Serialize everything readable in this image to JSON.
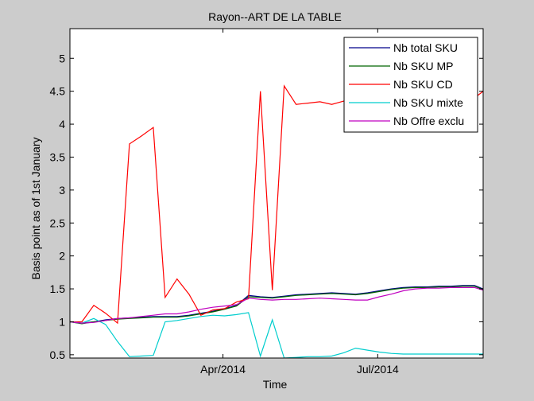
{
  "chart_data": {
    "type": "line",
    "title": "Rayon--ART DE LA TABLE",
    "xlabel": "Time",
    "ylabel": "Basis point as of 1st January",
    "xlim": [
      "2014-01-01",
      "2014-09-01"
    ],
    "ylim": [
      0.45,
      5.45
    ],
    "x_ticks": [
      {
        "date": "2014-04-01",
        "label": "Apr/2014"
      },
      {
        "date": "2014-07-01",
        "label": "Jul/2014"
      }
    ],
    "y_ticks": [
      {
        "value": 0.5,
        "label": "0.5"
      },
      {
        "value": 1,
        "label": "1"
      },
      {
        "value": 1.5,
        "label": "1.5"
      },
      {
        "value": 2,
        "label": "2"
      },
      {
        "value": 2.5,
        "label": "2.5"
      },
      {
        "value": 3,
        "label": "3"
      },
      {
        "value": 3.5,
        "label": "3.5"
      },
      {
        "value": 4,
        "label": "4"
      },
      {
        "value": 4.5,
        "label": "4.5"
      },
      {
        "value": 5,
        "label": "5"
      }
    ],
    "grid": false,
    "legend_position": "top-right",
    "series": [
      {
        "name": "Nb total SKU",
        "color": "#00008b",
        "x": [
          "2014-01-01",
          "2014-01-08",
          "2014-01-15",
          "2014-01-22",
          "2014-01-29",
          "2014-02-05",
          "2014-02-12",
          "2014-02-19",
          "2014-02-26",
          "2014-03-05",
          "2014-03-12",
          "2014-03-19",
          "2014-03-26",
          "2014-04-02",
          "2014-04-09",
          "2014-04-16",
          "2014-04-23",
          "2014-04-30",
          "2014-05-07",
          "2014-05-14",
          "2014-05-21",
          "2014-05-28",
          "2014-06-04",
          "2014-06-11",
          "2014-06-18",
          "2014-06-25",
          "2014-07-02",
          "2014-07-09",
          "2014-07-16",
          "2014-07-23",
          "2014-07-30",
          "2014-08-06",
          "2014-08-13",
          "2014-08-20",
          "2014-08-27",
          "2014-09-01"
        ],
        "y": [
          1.0,
          0.98,
          1.0,
          1.03,
          1.05,
          1.06,
          1.07,
          1.08,
          1.08,
          1.08,
          1.1,
          1.13,
          1.16,
          1.2,
          1.25,
          1.4,
          1.38,
          1.37,
          1.39,
          1.41,
          1.42,
          1.43,
          1.44,
          1.43,
          1.42,
          1.44,
          1.47,
          1.5,
          1.52,
          1.53,
          1.53,
          1.54,
          1.54,
          1.55,
          1.55,
          1.5
        ]
      },
      {
        "name": "Nb SKU MP",
        "color": "#006400",
        "x": [
          "2014-01-01",
          "2014-01-08",
          "2014-01-15",
          "2014-01-22",
          "2014-01-29",
          "2014-02-05",
          "2014-02-12",
          "2014-02-19",
          "2014-02-26",
          "2014-03-05",
          "2014-03-12",
          "2014-03-19",
          "2014-03-26",
          "2014-04-02",
          "2014-04-09",
          "2014-04-16",
          "2014-04-23",
          "2014-04-30",
          "2014-05-07",
          "2014-05-14",
          "2014-05-21",
          "2014-05-28",
          "2014-06-04",
          "2014-06-11",
          "2014-06-18",
          "2014-06-25",
          "2014-07-02",
          "2014-07-09",
          "2014-07-16",
          "2014-07-23",
          "2014-07-30",
          "2014-08-06",
          "2014-08-13",
          "2014-08-20",
          "2014-08-27",
          "2014-09-01"
        ],
        "y": [
          1.0,
          0.97,
          1.0,
          1.02,
          1.04,
          1.05,
          1.06,
          1.07,
          1.07,
          1.07,
          1.09,
          1.12,
          1.15,
          1.19,
          1.24,
          1.38,
          1.37,
          1.36,
          1.38,
          1.4,
          1.41,
          1.42,
          1.43,
          1.42,
          1.41,
          1.43,
          1.46,
          1.49,
          1.51,
          1.52,
          1.52,
          1.53,
          1.53,
          1.54,
          1.54,
          1.49
        ]
      },
      {
        "name": "Nb SKU CD",
        "color": "#ff0000",
        "x": [
          "2014-01-01",
          "2014-01-08",
          "2014-01-15",
          "2014-01-22",
          "2014-01-29",
          "2014-02-05",
          "2014-02-12",
          "2014-02-19",
          "2014-02-26",
          "2014-03-05",
          "2014-03-12",
          "2014-03-19",
          "2014-03-26",
          "2014-04-02",
          "2014-04-09",
          "2014-04-16",
          "2014-04-23",
          "2014-04-30",
          "2014-05-07",
          "2014-05-14",
          "2014-05-21",
          "2014-05-28",
          "2014-06-04",
          "2014-06-11",
          "2014-06-18",
          "2014-06-25",
          "2014-07-02",
          "2014-07-09",
          "2014-07-16",
          "2014-07-23",
          "2014-07-30",
          "2014-08-06",
          "2014-08-13",
          "2014-08-20",
          "2014-08-27",
          "2014-09-01"
        ],
        "y": [
          1.0,
          1.0,
          1.25,
          1.13,
          0.98,
          3.7,
          3.82,
          3.95,
          1.37,
          1.65,
          1.42,
          1.1,
          1.18,
          1.2,
          1.3,
          1.35,
          4.5,
          1.48,
          4.58,
          4.3,
          4.32,
          4.34,
          4.3,
          4.35,
          4.4,
          4.45,
          4.48,
          4.45,
          4.5,
          4.55,
          4.5,
          4.5,
          4.6,
          4.62,
          4.4,
          4.5
        ]
      },
      {
        "name": "Nb SKU mixte",
        "color": "#00cdcd",
        "x": [
          "2014-01-01",
          "2014-01-08",
          "2014-01-15",
          "2014-01-22",
          "2014-01-29",
          "2014-02-05",
          "2014-02-12",
          "2014-02-19",
          "2014-02-26",
          "2014-03-05",
          "2014-03-12",
          "2014-03-19",
          "2014-03-26",
          "2014-04-02",
          "2014-04-09",
          "2014-04-16",
          "2014-04-23",
          "2014-04-30",
          "2014-05-07",
          "2014-05-14",
          "2014-05-21",
          "2014-05-28",
          "2014-06-04",
          "2014-06-11",
          "2014-06-18",
          "2014-06-25",
          "2014-07-02",
          "2014-07-09",
          "2014-07-16",
          "2014-07-23",
          "2014-07-30",
          "2014-08-06",
          "2014-08-13",
          "2014-08-20",
          "2014-08-27",
          "2014-09-01"
        ],
        "y": [
          1.0,
          0.98,
          1.05,
          0.96,
          0.7,
          0.47,
          0.48,
          0.49,
          1.0,
          1.02,
          1.05,
          1.08,
          1.1,
          1.09,
          1.11,
          1.14,
          0.48,
          1.03,
          0.45,
          0.46,
          0.47,
          0.47,
          0.48,
          0.53,
          0.6,
          0.57,
          0.54,
          0.52,
          0.51,
          0.51,
          0.51,
          0.51,
          0.51,
          0.51,
          0.51,
          0.51
        ]
      },
      {
        "name": "Nb Offre exclu",
        "color": "#c000c0",
        "x": [
          "2014-01-01",
          "2014-01-08",
          "2014-01-15",
          "2014-01-22",
          "2014-01-29",
          "2014-02-05",
          "2014-02-12",
          "2014-02-19",
          "2014-02-26",
          "2014-03-05",
          "2014-03-12",
          "2014-03-19",
          "2014-03-26",
          "2014-04-02",
          "2014-04-09",
          "2014-04-16",
          "2014-04-23",
          "2014-04-30",
          "2014-05-07",
          "2014-05-14",
          "2014-05-21",
          "2014-05-28",
          "2014-06-04",
          "2014-06-11",
          "2014-06-18",
          "2014-06-25",
          "2014-07-02",
          "2014-07-09",
          "2014-07-16",
          "2014-07-23",
          "2014-07-30",
          "2014-08-06",
          "2014-08-13",
          "2014-08-20",
          "2014-08-27",
          "2014-09-01"
        ],
        "y": [
          1.0,
          0.98,
          0.99,
          1.02,
          1.05,
          1.06,
          1.08,
          1.1,
          1.12,
          1.12,
          1.15,
          1.19,
          1.22,
          1.24,
          1.26,
          1.36,
          1.34,
          1.33,
          1.34,
          1.34,
          1.35,
          1.36,
          1.35,
          1.34,
          1.33,
          1.33,
          1.38,
          1.42,
          1.47,
          1.5,
          1.51,
          1.51,
          1.52,
          1.52,
          1.52,
          1.48
        ]
      }
    ]
  }
}
